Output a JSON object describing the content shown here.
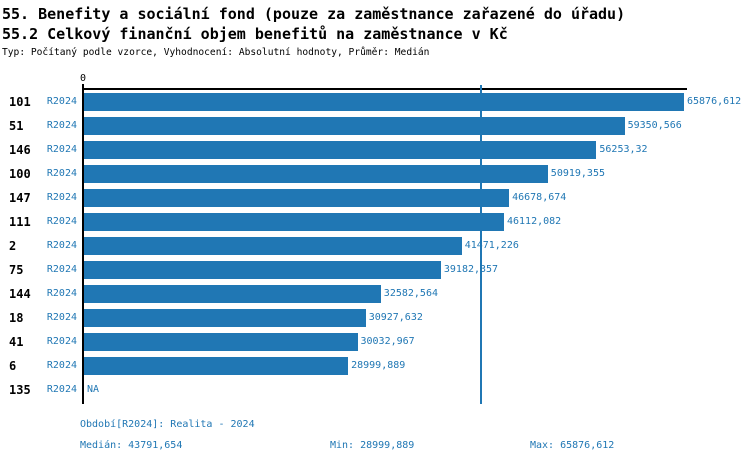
{
  "header": {
    "title_line1": "55. Benefity a sociální fond (pouze za zaměstnance zařazené do úřadu)",
    "title_line2": "55.2 Celkový finanční objem benefitů na zaměstnance v Kč",
    "subtitle": "Typ: Počítaný podle vzorce, Vyhodnocení: Absolutní hodnoty, Průměr: Medián"
  },
  "chart_data": {
    "type": "bar",
    "orientation": "horizontal",
    "title": "55.2 Celkový finanční objem benefitů na zaměstnance v Kč",
    "series_label": "R2024",
    "x_tick_zero_label": "0",
    "categories": [
      "101",
      "51",
      "146",
      "100",
      "147",
      "111",
      "2",
      "75",
      "144",
      "18",
      "41",
      "6",
      "135"
    ],
    "values": [
      65876.612,
      59350.566,
      56253.32,
      50919.355,
      46678.674,
      46112.082,
      41471.226,
      39182.357,
      32582.564,
      30927.632,
      30032.967,
      28999.889,
      null
    ],
    "value_labels": [
      "65876,612",
      "59350,566",
      "56253,32",
      "50919,355",
      "46678,674",
      "46112,082",
      "41471,226",
      "39182,357",
      "32582,564",
      "30927,632",
      "30032,967",
      "28999,889",
      "NA"
    ],
    "xlim": [
      0,
      65876.612
    ],
    "median_value": 43791.654,
    "min_value": 28999.889,
    "max_value": 65876.612,
    "grid": false,
    "legend": "none",
    "bar_color": "#2077b4",
    "median_line_color": "#2077b4",
    "label_color": "#2077b4",
    "axis_color": "#000000"
  },
  "footer": {
    "period": "Období[R2024]: Realita - 2024",
    "median_label": "Medián: 43791,654",
    "min_label": "Min: 28999,889",
    "max_label": "Max: 65876,612"
  }
}
